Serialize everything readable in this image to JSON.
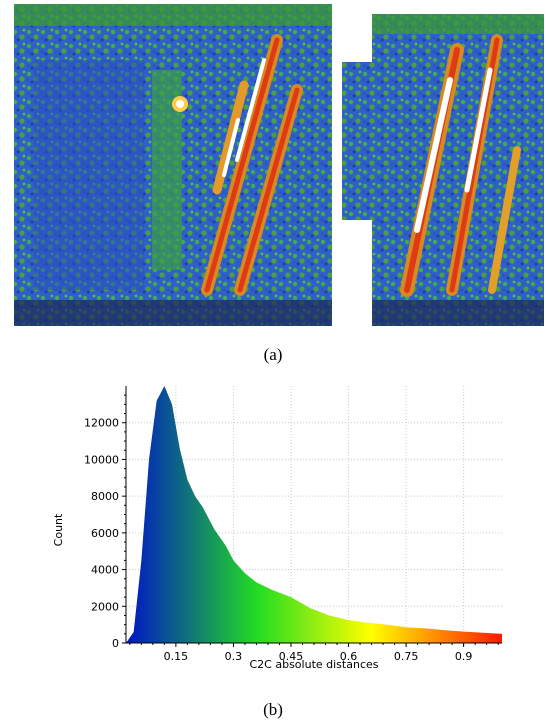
{
  "figure": {
    "caption_a": "(a)",
    "caption_b": "(b)"
  },
  "colors": {
    "low": "#0014c8",
    "mid": "#22dd22",
    "high_mid": "#ffff00",
    "high": "#ff1a00"
  },
  "chart_data": {
    "type": "bar",
    "title": "",
    "xlabel": "C2C absolute distances",
    "ylabel": "Count",
    "xlim": [
      0.02,
      1.0
    ],
    "ylim": [
      0,
      14000
    ],
    "xticks": [
      0.15,
      0.3,
      0.45,
      0.6,
      0.75,
      0.9
    ],
    "xtick_labels": [
      "0.15",
      "0.3",
      "0.45",
      "0.6",
      "0.75",
      "0.9"
    ],
    "yticks": [
      0,
      2000,
      4000,
      6000,
      8000,
      10000,
      12000
    ],
    "ytick_labels": [
      "0",
      "2000",
      "4000",
      "6000",
      "8000",
      "10000",
      "12000"
    ],
    "grid": true,
    "legend": "none",
    "series": [
      {
        "x": [
          0.02,
          0.04,
          0.06,
          0.08,
          0.1,
          0.12,
          0.14,
          0.16,
          0.18,
          0.2,
          0.22,
          0.25,
          0.28,
          0.3,
          0.33,
          0.36,
          0.4,
          0.45,
          0.5,
          0.55,
          0.6,
          0.65,
          0.7,
          0.75,
          0.8,
          0.85,
          0.9,
          0.95,
          1.0
        ],
        "values": [
          0,
          600,
          4500,
          10000,
          13200,
          14000,
          13000,
          10600,
          8900,
          8000,
          7400,
          6200,
          5300,
          4500,
          3800,
          3300,
          2900,
          2500,
          1900,
          1500,
          1250,
          1100,
          1000,
          850,
          800,
          700,
          620,
          560,
          500
        ]
      }
    ]
  }
}
